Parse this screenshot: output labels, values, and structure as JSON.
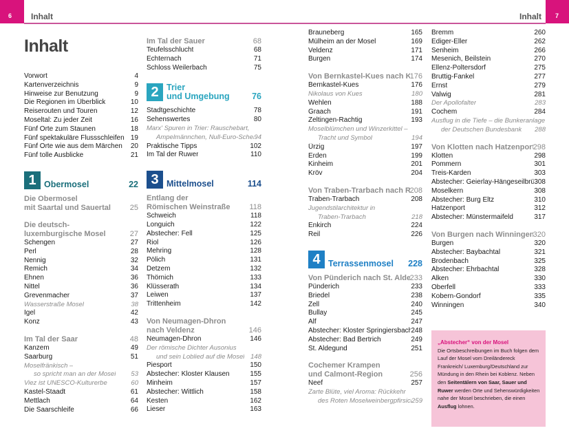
{
  "header": {
    "left_page_number": "6",
    "right_page_number": "7",
    "running_head_left": "Inhalt",
    "running_head_right": "Inhalt",
    "accent_color": "#d8137c"
  },
  "title": "Inhalt",
  "columns": [
    {
      "blocks": [
        {
          "type": "entry",
          "label": "Vorwort",
          "page": "4"
        },
        {
          "type": "entry",
          "label": "Kartenverzeichnis",
          "page": "9"
        },
        {
          "type": "entry",
          "label": "Hinweise zur Benutzung",
          "page": "9"
        },
        {
          "type": "entry",
          "label": "Die Regionen im Überblick",
          "page": "10"
        },
        {
          "type": "entry",
          "label": "Reiserouten und Touren",
          "page": "12"
        },
        {
          "type": "entry",
          "label": "Moseltal: Zu jeder Zeit",
          "page": "16"
        },
        {
          "type": "entry",
          "label": "Fünf Orte zum Staunen",
          "page": "18"
        },
        {
          "type": "entry",
          "label": "Fünf spektakuläre Flussschleifen",
          "page": "19"
        },
        {
          "type": "entry",
          "label": "Fünf Orte wie aus dem Märchen",
          "page": "20"
        },
        {
          "type": "entry",
          "label": "Fünf tolle Ausblicke",
          "page": "21"
        },
        {
          "type": "chapter",
          "num": "1",
          "lines": [
            "Obermosel"
          ],
          "page": "22",
          "color": "#1b6f7b"
        },
        {
          "type": "heading",
          "lines": [
            "Die Obermosel",
            "mit Saartal und Sauertal"
          ],
          "page": "25"
        },
        {
          "type": "heading",
          "lines": [
            "Die deutsch-",
            "luxemburgische Mosel"
          ],
          "page": "27"
        },
        {
          "type": "entry",
          "label": "Schengen",
          "page": "27"
        },
        {
          "type": "entry",
          "label": "Perl",
          "page": "28"
        },
        {
          "type": "entry",
          "label": "Nennig",
          "page": "32"
        },
        {
          "type": "entry",
          "label": "Remich",
          "page": "34"
        },
        {
          "type": "entry",
          "label": "Ehnen",
          "page": "36"
        },
        {
          "type": "entry",
          "label": "Nittel",
          "page": "36"
        },
        {
          "type": "entry",
          "label": "Grevenmacher",
          "page": "37"
        },
        {
          "type": "note",
          "lines": [
            "Wasserstraße Mosel"
          ],
          "page": "38"
        },
        {
          "type": "entry",
          "label": "Igel",
          "page": "42"
        },
        {
          "type": "entry",
          "label": "Konz",
          "page": "43"
        },
        {
          "type": "heading",
          "lines": [
            "Im Tal der Saar"
          ],
          "page": "48"
        },
        {
          "type": "entry",
          "label": "Kanzem",
          "page": "49"
        },
        {
          "type": "entry",
          "label": "Saarburg",
          "page": "51"
        },
        {
          "type": "note",
          "lines": [
            "Moselfränkisch –",
            "so spricht man an der Mosel"
          ],
          "page": "53"
        },
        {
          "type": "note",
          "lines": [
            "Viez ist UNESCO-Kulturerbe"
          ],
          "page": "60"
        },
        {
          "type": "entry",
          "label": "Kastel-Staadt",
          "page": "61"
        },
        {
          "type": "entry",
          "label": "Mettlach",
          "page": "64"
        },
        {
          "type": "entry",
          "label": "Die Saarschleife",
          "page": "66"
        }
      ]
    },
    {
      "blocks": [
        {
          "type": "heading",
          "lines": [
            "Im Tal der Sauer"
          ],
          "page": "68"
        },
        {
          "type": "entry",
          "label": "Teufelsschlucht",
          "page": "68"
        },
        {
          "type": "entry",
          "label": "Echternach",
          "page": "71"
        },
        {
          "type": "entry",
          "label": "Schloss Weilerbach",
          "page": "75"
        },
        {
          "type": "chapter",
          "num": "2",
          "lines": [
            "Trier",
            "und Umgebung"
          ],
          "page": "76",
          "color": "#2aa5bf"
        },
        {
          "type": "entry",
          "label": "Stadtgeschichte",
          "page": "78"
        },
        {
          "type": "entry",
          "label": "Sehenswertes",
          "page": "80"
        },
        {
          "type": "note",
          "lines": [
            "Marx' Spuren in Trier: Rauschebart,",
            "Ampelmännchen, Null-Euro-Schein"
          ],
          "page": "94"
        },
        {
          "type": "entry",
          "label": "Praktische Tipps",
          "page": "102"
        },
        {
          "type": "entry",
          "label": "Im Tal der Ruwer",
          "page": "110"
        },
        {
          "type": "chapter",
          "num": "3",
          "lines": [
            "Mittelmosel"
          ],
          "page": "114",
          "color": "#1c4f8d"
        },
        {
          "type": "heading",
          "lines": [
            "Entlang der",
            "Römischen Weinstraße"
          ],
          "page": "118"
        },
        {
          "type": "entry",
          "label": "Schweich",
          "page": "118"
        },
        {
          "type": "entry",
          "label": "Longuich",
          "page": "122"
        },
        {
          "type": "entry",
          "label": "Abstecher: Fell",
          "page": "125"
        },
        {
          "type": "entry",
          "label": "Riol",
          "page": "126"
        },
        {
          "type": "entry",
          "label": "Mehring",
          "page": "128"
        },
        {
          "type": "entry",
          "label": "Pölich",
          "page": "131"
        },
        {
          "type": "entry",
          "label": "Detzem",
          "page": "132"
        },
        {
          "type": "entry",
          "label": "Thörnich",
          "page": "133"
        },
        {
          "type": "entry",
          "label": "Klüsserath",
          "page": "134"
        },
        {
          "type": "entry",
          "label": "Leiwen",
          "page": "137"
        },
        {
          "type": "entry",
          "label": "Trittenheim",
          "page": "142"
        },
        {
          "type": "heading",
          "lines": [
            "Von Neumagen-Dhron",
            "nach Veldenz"
          ],
          "page": "146"
        },
        {
          "type": "entry",
          "label": "Neumagen-Dhron",
          "page": "146"
        },
        {
          "type": "note",
          "lines": [
            "Der römische Dichter Ausonius",
            "und sein Loblied auf die Mosel"
          ],
          "page": "148"
        },
        {
          "type": "entry",
          "label": "Piesport",
          "page": "150"
        },
        {
          "type": "entry",
          "label": "Abstecher: Kloster Klausen",
          "page": "155"
        },
        {
          "type": "entry",
          "label": "Minheim",
          "page": "157"
        },
        {
          "type": "entry",
          "label": "Abstecher: Wittlich",
          "page": "158"
        },
        {
          "type": "entry",
          "label": "Kesten",
          "page": "162"
        },
        {
          "type": "entry",
          "label": "Lieser",
          "page": "163"
        }
      ]
    },
    {
      "blocks": [
        {
          "type": "entry",
          "label": "Brauneberg",
          "page": "165"
        },
        {
          "type": "entry",
          "label": "Mülheim an der Mosel",
          "page": "169"
        },
        {
          "type": "entry",
          "label": "Veldenz",
          "page": "171"
        },
        {
          "type": "entry",
          "label": "Burgen",
          "page": "174"
        },
        {
          "type": "heading",
          "lines": [
            "Von Bernkastel-Kues nach Kröv"
          ],
          "page": "176"
        },
        {
          "type": "entry",
          "label": "Bernkastel-Kues",
          "page": "176"
        },
        {
          "type": "note",
          "lines": [
            "Nikolaus von Kues"
          ],
          "page": "180"
        },
        {
          "type": "entry",
          "label": "Wehlen",
          "page": "188"
        },
        {
          "type": "entry",
          "label": "Graach",
          "page": "191"
        },
        {
          "type": "entry",
          "label": "Zeltingen-Rachtig",
          "page": "193"
        },
        {
          "type": "note",
          "lines": [
            "Moselblümchen und Winzerkittel –",
            "Tracht und Symbol"
          ],
          "page": "194"
        },
        {
          "type": "entry",
          "label": "Ürzig",
          "page": "197"
        },
        {
          "type": "entry",
          "label": "Erden",
          "page": "199"
        },
        {
          "type": "entry",
          "label": "Kinheim",
          "page": "201"
        },
        {
          "type": "entry",
          "label": "Kröv",
          "page": "204"
        },
        {
          "type": "heading",
          "lines": [
            "Von Traben-Trarbach nach Reil"
          ],
          "page": "208"
        },
        {
          "type": "entry",
          "label": "Traben-Trarbach",
          "page": "208"
        },
        {
          "type": "note",
          "lines": [
            "Jugendstilarchitektur in",
            "Traben-Trarbach"
          ],
          "page": "218"
        },
        {
          "type": "entry",
          "label": "Enkirch",
          "page": "224"
        },
        {
          "type": "entry",
          "label": "Reil",
          "page": "226"
        },
        {
          "type": "chapter",
          "num": "4",
          "lines": [
            "Terrassenmosel"
          ],
          "page": "228",
          "color": "#1f80c5"
        },
        {
          "type": "heading",
          "lines": [
            "Von Pünderich nach St. Aldegund"
          ],
          "page": "233"
        },
        {
          "type": "entry",
          "label": "Pünderich",
          "page": "233"
        },
        {
          "type": "entry",
          "label": "Briedel",
          "page": "238"
        },
        {
          "type": "entry",
          "label": "Zell",
          "page": "240"
        },
        {
          "type": "entry",
          "label": "Bullay",
          "page": "245"
        },
        {
          "type": "entry",
          "label": "Alf",
          "page": "247"
        },
        {
          "type": "entry",
          "label": "Abstecher: Kloster Springiersbach",
          "page": "248"
        },
        {
          "type": "entry",
          "label": "Abstecher: Bad Bertrich",
          "page": "249"
        },
        {
          "type": "entry",
          "label": "St. Aldegund",
          "page": "251"
        },
        {
          "type": "heading",
          "lines": [
            "Cochemer Krampen",
            "und Calmont-Region"
          ],
          "page": "256"
        },
        {
          "type": "entry",
          "label": "Neef",
          "page": "257"
        },
        {
          "type": "note",
          "lines": [
            "Zarte Blüte, viel Aroma: Rückkehr",
            "des Roten Moselweinbergpfirsichs"
          ],
          "page": "259"
        }
      ]
    },
    {
      "blocks": [
        {
          "type": "entry",
          "label": "Bremm",
          "page": "260"
        },
        {
          "type": "entry",
          "label": "Ediger-Eller",
          "page": "262"
        },
        {
          "type": "entry",
          "label": "Senheim",
          "page": "266"
        },
        {
          "type": "entry",
          "label": "Mesenich, Beilstein",
          "page": "270"
        },
        {
          "type": "entry",
          "label": "Ellenz-Poltersdorf",
          "page": "275"
        },
        {
          "type": "entry",
          "label": "Bruttig-Fankel",
          "page": "277"
        },
        {
          "type": "entry",
          "label": "Ernst",
          "page": "279"
        },
        {
          "type": "entry",
          "label": "Valwig",
          "page": "281"
        },
        {
          "type": "note",
          "lines": [
            "Der Apollofalter"
          ],
          "page": "283"
        },
        {
          "type": "entry",
          "label": "Cochem",
          "page": "284"
        },
        {
          "type": "note",
          "lines": [
            "Ausflug in die Tiefe – die Bunkeranlage",
            "der Deutschen Bundesbank"
          ],
          "page": "288"
        },
        {
          "type": "heading",
          "lines": [
            "Von Klotten nach Hatzenport"
          ],
          "page": "298"
        },
        {
          "type": "entry",
          "label": "Klotten",
          "page": "298"
        },
        {
          "type": "entry",
          "label": "Pommern",
          "page": "301"
        },
        {
          "type": "entry",
          "label": "Treis-Karden",
          "page": "303"
        },
        {
          "type": "entry",
          "label": "Abstecher: Geierlay-Hängeseilbrücke",
          "page": "308"
        },
        {
          "type": "entry",
          "label": "Moselkern",
          "page": "308"
        },
        {
          "type": "entry",
          "label": "Abstecher: Burg Eltz",
          "page": "310"
        },
        {
          "type": "entry",
          "label": "Hatzenport",
          "page": "312"
        },
        {
          "type": "entry",
          "label": "Abstecher: Münstermaifeld",
          "page": "317"
        },
        {
          "type": "heading",
          "lines": [
            "Von Burgen nach Winningen"
          ],
          "page": "320"
        },
        {
          "type": "entry",
          "label": "Burgen",
          "page": "320"
        },
        {
          "type": "entry",
          "label": "Abstecher: Baybachtal",
          "page": "321"
        },
        {
          "type": "entry",
          "label": "Brodenbach",
          "page": "325"
        },
        {
          "type": "entry",
          "label": "Abstecher: Ehrbachtal",
          "page": "328"
        },
        {
          "type": "entry",
          "label": "Alken",
          "page": "330"
        },
        {
          "type": "entry",
          "label": "Oberfell",
          "page": "333"
        },
        {
          "type": "entry",
          "label": "Kobern-Gondorf",
          "page": "335"
        },
        {
          "type": "entry",
          "label": "Winningen",
          "page": "340"
        }
      ]
    }
  ],
  "info_box": {
    "title": "„Abstecher“ von der Mosel",
    "text_1": "Die Ortsbeschreibungen im Buch folgen dem Lauf der Mosel vom Dreiländereck Frankreich/ Luxemburg/Deutschland zur Mündung in den Rhein bei Koblenz. Neben den ",
    "bold_1": "Seitentälern von Saar, Sauer und Ruwer",
    "text_2": " werden Orte und Sehenswürdigkeiten nahe der Mosel beschrieben, die einen ",
    "bold_2": "Ausflug",
    "text_3": " lohnen.",
    "background": "#f6c4d8"
  }
}
